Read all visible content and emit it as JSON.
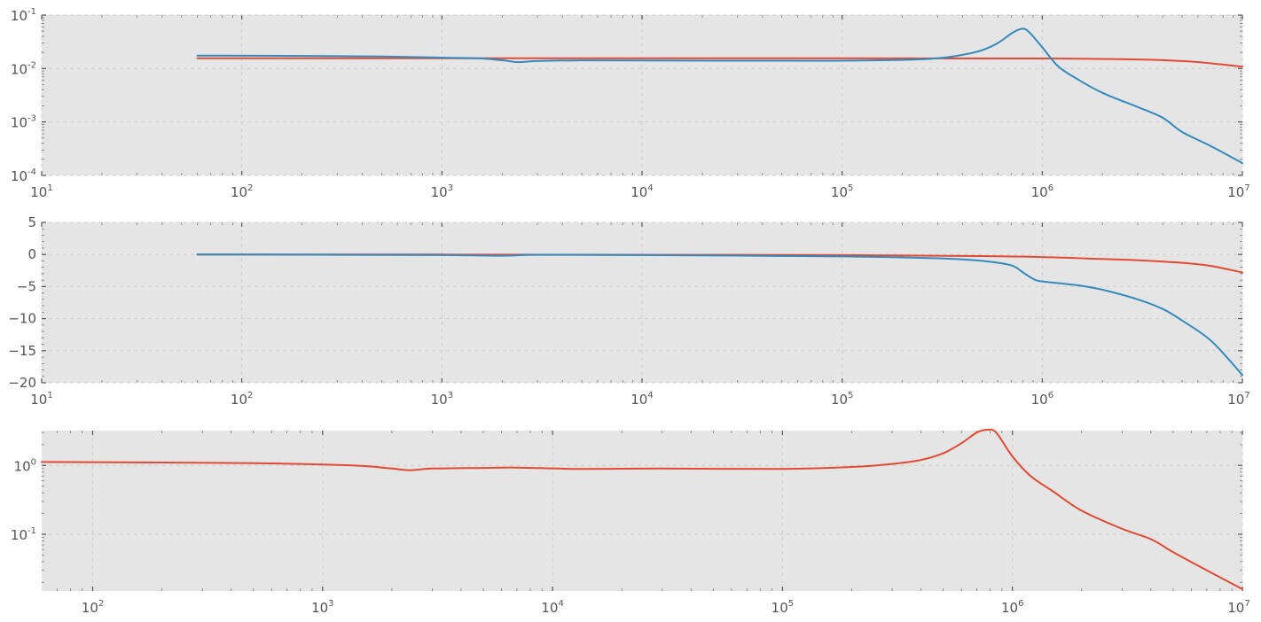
{
  "chart_data": [
    {
      "type": "line",
      "xscale": "log",
      "yscale": "log",
      "xlim": [
        10,
        10000000
      ],
      "ylim": [
        0.0001,
        0.1
      ],
      "grid": true,
      "xticks": [
        {
          "base": "10",
          "exp": "1"
        },
        {
          "base": "10",
          "exp": "2"
        },
        {
          "base": "10",
          "exp": "3"
        },
        {
          "base": "10",
          "exp": "4"
        },
        {
          "base": "10",
          "exp": "5"
        },
        {
          "base": "10",
          "exp": "6"
        },
        {
          "base": "10",
          "exp": "7"
        }
      ],
      "yticks": [
        {
          "value": 0.0001,
          "base": "10",
          "exp": "-4"
        },
        {
          "value": 0.001,
          "base": "10",
          "exp": "-3"
        },
        {
          "value": 0.01,
          "base": "10",
          "exp": "-2"
        },
        {
          "value": 0.1,
          "base": "10",
          "exp": "-1"
        }
      ],
      "series": [
        {
          "color": "#e24a33",
          "x": [
            60,
            1000,
            10000,
            100000,
            1000000,
            3000000,
            5000000,
            7000000,
            10000000
          ],
          "y": [
            0.0155,
            0.0155,
            0.0155,
            0.0155,
            0.0154,
            0.0148,
            0.0138,
            0.0125,
            0.0108
          ]
        },
        {
          "color": "#348abd",
          "x": [
            60,
            200,
            500,
            1000,
            1500,
            2000,
            2400,
            3000,
            5000,
            10000,
            50000,
            100000,
            200000,
            300000,
            400000,
            500000,
            600000,
            700000,
            780000,
            850000,
            1000000,
            1200000,
            1500000,
            2000000,
            3000000,
            4000000,
            5000000,
            7000000,
            10000000
          ],
          "y": [
            0.0175,
            0.0172,
            0.0168,
            0.016,
            0.0155,
            0.0143,
            0.0132,
            0.0138,
            0.0142,
            0.0141,
            0.014,
            0.014,
            0.0145,
            0.0155,
            0.018,
            0.022,
            0.03,
            0.045,
            0.055,
            0.05,
            0.025,
            0.011,
            0.0063,
            0.0035,
            0.0019,
            0.0012,
            0.00065,
            0.00035,
            0.00017
          ]
        }
      ]
    },
    {
      "type": "line",
      "xscale": "log",
      "yscale": "linear",
      "xlim": [
        10,
        10000000
      ],
      "ylim": [
        -20,
        5
      ],
      "grid": true,
      "xticks": [
        {
          "base": "10",
          "exp": "1"
        },
        {
          "base": "10",
          "exp": "2"
        },
        {
          "base": "10",
          "exp": "3"
        },
        {
          "base": "10",
          "exp": "4"
        },
        {
          "base": "10",
          "exp": "5"
        },
        {
          "base": "10",
          "exp": "6"
        },
        {
          "base": "10",
          "exp": "7"
        }
      ],
      "yticks": [
        {
          "value": 5,
          "label": "5"
        },
        {
          "value": 0,
          "label": "0"
        },
        {
          "value": -5,
          "label": "−5"
        },
        {
          "value": -10,
          "label": "−10"
        },
        {
          "value": -15,
          "label": "−15"
        },
        {
          "value": -20,
          "label": "−20"
        }
      ],
      "series": [
        {
          "color": "#e24a33",
          "x": [
            60,
            1000,
            10000,
            100000,
            500000,
            1000000,
            2000000,
            3000000,
            5000000,
            7000000,
            10000000
          ],
          "y": [
            0,
            -0.02,
            -0.05,
            -0.1,
            -0.25,
            -0.4,
            -0.7,
            -0.9,
            -1.3,
            -1.8,
            -2.8
          ]
        },
        {
          "color": "#348abd",
          "x": [
            60,
            1000,
            2000,
            3000,
            10000,
            100000,
            300000,
            500000,
            700000,
            800000,
            900000,
            1000000,
            1500000,
            2000000,
            3000000,
            4000000,
            5000000,
            7000000,
            10000000
          ],
          "y": [
            0,
            -0.1,
            -0.2,
            -0.05,
            -0.1,
            -0.3,
            -0.6,
            -1.0,
            -1.7,
            -2.8,
            -3.8,
            -4.2,
            -4.8,
            -5.5,
            -7.0,
            -8.5,
            -10.3,
            -13.5,
            -18.8
          ]
        }
      ]
    },
    {
      "type": "line",
      "xscale": "log",
      "yscale": "log",
      "xlim": [
        60,
        10000000
      ],
      "ylim": [
        0.015,
        3.2
      ],
      "grid": true,
      "xticks": [
        {
          "base": "10",
          "exp": "2"
        },
        {
          "base": "10",
          "exp": "3"
        },
        {
          "base": "10",
          "exp": "4"
        },
        {
          "base": "10",
          "exp": "5"
        },
        {
          "base": "10",
          "exp": "6"
        },
        {
          "base": "10",
          "exp": "7"
        }
      ],
      "yticks": [
        {
          "value": 0.1,
          "base": "10",
          "exp": "-1"
        },
        {
          "value": 1,
          "base": "10",
          "exp": "0"
        }
      ],
      "series": [
        {
          "color": "#e24a33",
          "x": [
            60,
            200,
            500,
            1000,
            1500,
            2000,
            2400,
            3000,
            5000,
            7000,
            13000,
            30000,
            100000,
            200000,
            300000,
            400000,
            500000,
            600000,
            700000,
            780000,
            850000,
            1000000,
            1200000,
            1500000,
            2000000,
            3000000,
            4000000,
            5000000,
            7000000,
            10000000
          ],
          "y": [
            1.12,
            1.1,
            1.08,
            1.03,
            0.98,
            0.9,
            0.85,
            0.9,
            0.92,
            0.93,
            0.89,
            0.9,
            0.89,
            0.95,
            1.05,
            1.2,
            1.5,
            2.1,
            3.0,
            3.3,
            3.0,
            1.35,
            0.7,
            0.42,
            0.22,
            0.12,
            0.085,
            0.055,
            0.03,
            0.016
          ]
        }
      ]
    }
  ]
}
